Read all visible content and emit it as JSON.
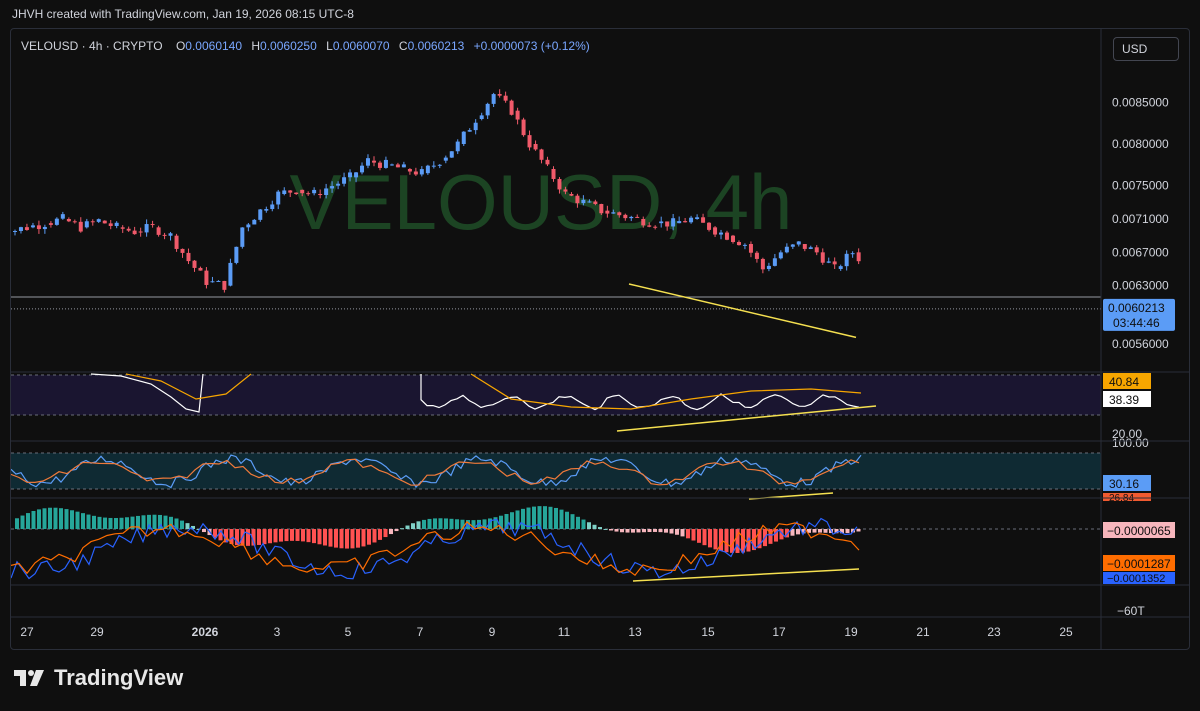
{
  "credit": "JHVH created with TradingView.com, Jan 19, 2026 08:15 UTC-8",
  "legend": {
    "symbol": "VELOUSD · 4h · CRYPTO",
    "o_label": "O",
    "o": "0.0060140",
    "h_label": "H",
    "h": "0.0060250",
    "l_label": "L",
    "l": "0.0060070",
    "c_label": "C",
    "c": "0.0060213",
    "change": "+0.0000073 (+0.12%)"
  },
  "currency": "USD",
  "watermark": "VELOUSD, 4h",
  "footer_brand": "TradingView",
  "colors": {
    "up": "#5b9cf6",
    "down": "#f05a6a",
    "trend": "#f5e050",
    "rsi": "#ffffff",
    "ma": "#f7a600",
    "macd": "#2962ff",
    "signal": "#ff6d00",
    "hist_up": "#26a69a",
    "hist_down": "#ff5252"
  },
  "chart_data": [
    {
      "type": "candlestick",
      "pane": "price",
      "y_ticks": [
        "0.0085000",
        "0.0080000",
        "0.0075000",
        "0.0071000",
        "0.0067000",
        "0.0063000",
        "0.0056000"
      ],
      "ylim": [
        0.0053,
        0.0089
      ],
      "last_price": "0.0060213",
      "countdown": "03:44:46",
      "x_ticks": [
        "27",
        "29",
        "2026",
        "3",
        "5",
        "7",
        "9",
        "11",
        "13",
        "15",
        "17",
        "19",
        "21",
        "23",
        "25"
      ],
      "trend_line": {
        "from": [
          "13",
          0.00632
        ],
        "to": [
          "19",
          0.00568
        ]
      },
      "path_points": [
        [
          26.0,
          0.0069
        ],
        [
          26.5,
          0.00695
        ],
        [
          27.0,
          0.007
        ],
        [
          27.5,
          0.00705
        ],
        [
          28.0,
          0.0071
        ],
        [
          28.5,
          0.007
        ],
        [
          29.0,
          0.00708
        ],
        [
          29.5,
          0.007
        ],
        [
          30.0,
          0.00695
        ],
        [
          30.5,
          0.007
        ],
        [
          31.0,
          0.0069
        ],
        [
          31.5,
          0.0066
        ],
        [
          32.0,
          0.00635
        ],
        [
          32.5,
          0.0063
        ],
        [
          33.0,
          0.007
        ],
        [
          33.5,
          0.0072
        ],
        [
          34.0,
          0.0074
        ],
        [
          34.5,
          0.00745
        ],
        [
          35.0,
          0.0074
        ],
        [
          35.5,
          0.0075
        ],
        [
          36.0,
          0.0076
        ],
        [
          36.5,
          0.0078
        ],
        [
          37.0,
          0.00775
        ],
        [
          37.5,
          0.0077
        ],
        [
          38.0,
          0.00765
        ],
        [
          38.5,
          0.0078
        ],
        [
          39.0,
          0.008
        ],
        [
          39.5,
          0.0083
        ],
        [
          40.0,
          0.0086
        ],
        [
          40.5,
          0.0084
        ],
        [
          41.0,
          0.008
        ],
        [
          41.5,
          0.0077
        ],
        [
          42.0,
          0.0074
        ],
        [
          42.5,
          0.0073
        ],
        [
          43.0,
          0.0072
        ],
        [
          43.5,
          0.00715
        ],
        [
          44.0,
          0.0071
        ],
        [
          44.5,
          0.00705
        ],
        [
          45.0,
          0.00705
        ],
        [
          45.5,
          0.0071
        ],
        [
          46.0,
          0.007
        ],
        [
          46.5,
          0.0069
        ],
        [
          47.0,
          0.0068
        ],
        [
          47.5,
          0.0065
        ],
        [
          48.0,
          0.0067
        ],
        [
          48.5,
          0.0068
        ],
        [
          49.0,
          0.0067
        ],
        [
          49.5,
          0.0065
        ],
        [
          50.0,
          0.0067
        ],
        [
          50.5,
          0.0065
        ],
        [
          51.0,
          0.0063
        ],
        [
          51.5,
          0.0062
        ],
        [
          52.0,
          0.006
        ],
        [
          52.5,
          0.0062
        ],
        [
          53.0,
          0.0064
        ],
        [
          53.5,
          0.0065
        ],
        [
          54.0,
          0.00635
        ],
        [
          54.5,
          0.00625
        ],
        [
          55.0,
          0.0063
        ],
        [
          55.5,
          0.006
        ],
        [
          56.0,
          0.00585
        ],
        [
          56.5,
          0.00602
        ]
      ]
    },
    {
      "type": "line",
      "pane": "rsi",
      "series": [
        {
          "name": "",
          "value_label": "38.39"
        },
        {
          "name": "",
          "value_label": "40.84"
        }
      ],
      "levels": [
        "20.00"
      ]
    },
    {
      "type": "line",
      "pane": "stoch",
      "levels": [
        "100.00"
      ],
      "series": [
        {
          "name": "",
          "value_label": "30.16"
        },
        {
          "name": "",
          "value_label": "26.84"
        }
      ]
    },
    {
      "type": "histogram",
      "pane": "macd",
      "series": [
        {
          "name": "",
          "value_label": "−0.0000065"
        },
        {
          "name": "",
          "value_label": "−0.0001287"
        },
        {
          "name": "",
          "value_label": "−0.0001352"
        }
      ],
      "levels": [
        "−60T"
      ]
    }
  ]
}
